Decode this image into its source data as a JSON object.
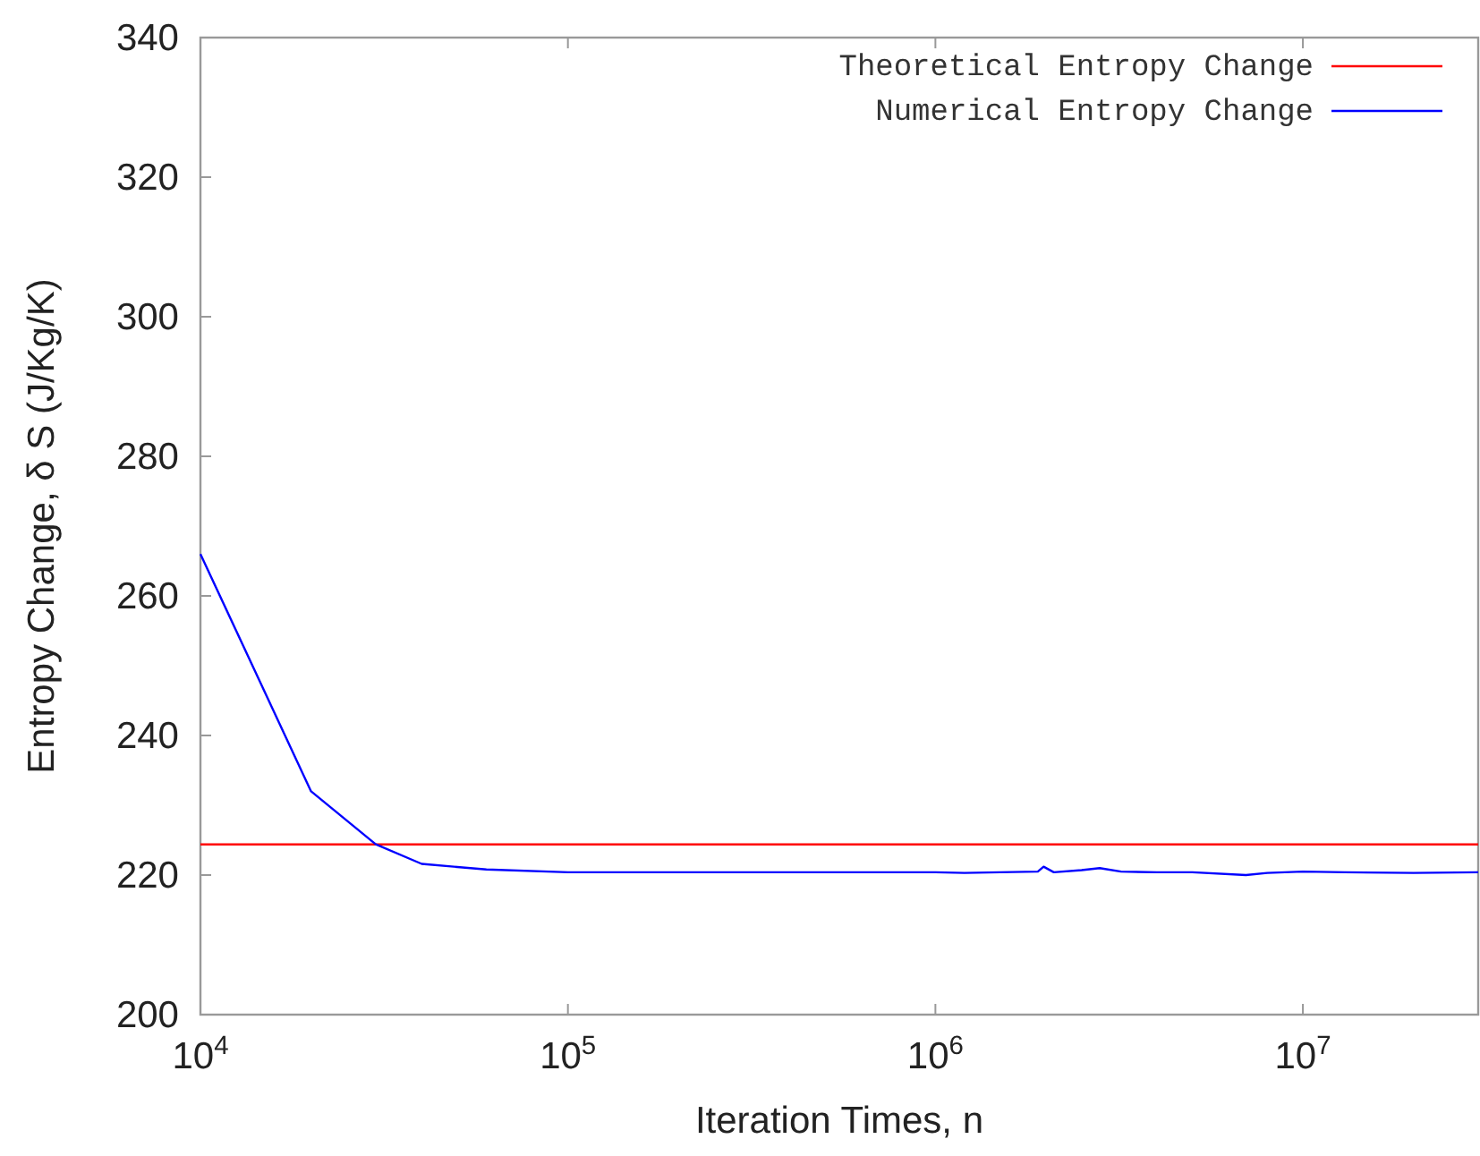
{
  "chart_data": {
    "type": "line",
    "xlabel": "Iteration Times, n",
    "ylabel": "Entropy Change, δ S (J/Kg/K)",
    "log": "x",
    "xlim": [
      10000,
      30000000
    ],
    "ylim": [
      200,
      340
    ],
    "xticks": [
      {
        "value": 10000,
        "label": "10$^{4}$"
      },
      {
        "value": 100000,
        "label": "10$^{5}$"
      },
      {
        "value": 1000000,
        "label": "10$^{6}$"
      },
      {
        "value": 10000000,
        "label": "10$^{7}$"
      }
    ],
    "yticks": [
      200,
      220,
      240,
      260,
      280,
      300,
      320,
      340
    ],
    "grid": false,
    "legend": "top right",
    "line_style": "solid",
    "series": [
      {
        "name": "Theoretical Entropy Change",
        "color": "#ff0000",
        "x": [
          10000,
          30000000
        ],
        "values": [
          224.4,
          224.4
        ]
      },
      {
        "name": "Numerical Entropy Change",
        "color": "#0000ff",
        "x": [
          10000,
          20000,
          30000,
          40000,
          60000,
          100000,
          300000,
          1000000,
          1200000,
          1500000,
          1900000,
          1970000,
          2100000,
          2500000,
          2800000,
          3200000,
          4000000,
          5000000,
          7000000,
          8000000,
          10000000,
          13000000,
          20000000,
          30000000
        ],
        "values": [
          266,
          232,
          224.4,
          221.6,
          220.8,
          220.4,
          220.4,
          220.4,
          220.3,
          220.4,
          220.5,
          221.2,
          220.4,
          220.7,
          221.0,
          220.5,
          220.4,
          220.4,
          220.0,
          220.3,
          220.5,
          220.4,
          220.3,
          220.4
        ]
      }
    ]
  }
}
